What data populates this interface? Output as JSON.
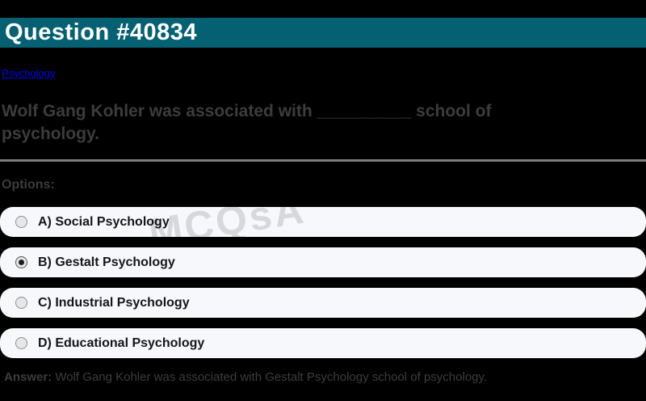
{
  "page": {
    "background_color": "#000000"
  },
  "header": {
    "title": "Question #40834",
    "background_color": "#056072",
    "text_color": "#ffffff"
  },
  "breadcrumb": {
    "category_link": "Psychology",
    "link_color": "#0000ee"
  },
  "question": {
    "text": "Wolf Gang Kohler was associated with __________ school of psychology.",
    "text_color": "#3c3c3c"
  },
  "options": {
    "label": "Options:",
    "row_background": "#f7f8fb",
    "items": [
      {
        "letter": "A",
        "label": "A) Social Psychology",
        "selected": false
      },
      {
        "letter": "B",
        "label": "B) Gestalt Psychology",
        "selected": true
      },
      {
        "letter": "C",
        "label": "C) Industrial Psychology",
        "selected": false
      },
      {
        "letter": "D",
        "label": "D) Educational Psychology",
        "selected": false
      }
    ]
  },
  "answer": {
    "prefix": "Answer:",
    "text": " Wolf Gang Kohler was associated with Gestalt Psychology school of psychology."
  },
  "watermark": {
    "text": "MCQsA"
  }
}
